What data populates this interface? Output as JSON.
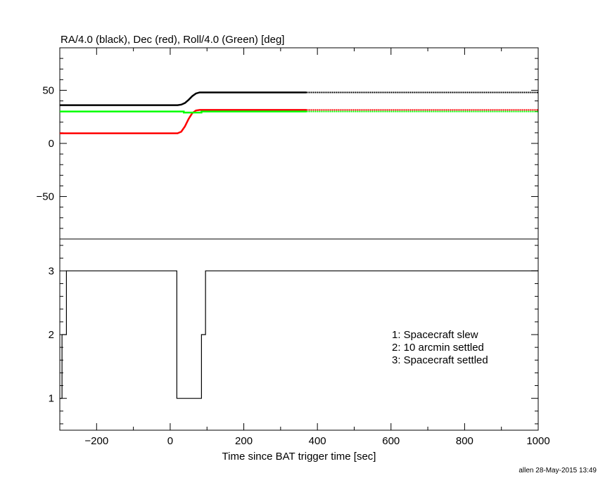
{
  "chart_data": [
    {
      "type": "line",
      "title": "RA/4.0 (black), Dec (red), Roll/4.0 (Green) [deg]",
      "xlim": [
        -300,
        1000
      ],
      "ylim": [
        -90,
        90
      ],
      "yticks": [
        50,
        0,
        -50
      ],
      "ytick_labels": [
        "50",
        "0",
        "−50"
      ],
      "grid": false,
      "series": [
        {
          "color": "#000000",
          "x": [
            -300,
            20,
            30,
            40,
            50,
            60,
            70,
            80,
            370
          ],
          "y": [
            36,
            36,
            36.5,
            38,
            41,
            44.5,
            47,
            48,
            48
          ],
          "continued_dotted_to": 1000
        },
        {
          "color": "#ff0000",
          "x": [
            -300,
            20,
            30,
            40,
            50,
            60,
            70,
            80,
            370
          ],
          "y": [
            9.5,
            9.5,
            11,
            16,
            23,
            28.5,
            31,
            31.5,
            31.5
          ],
          "continued_dotted_to": 1000
        },
        {
          "color": "#00ff00",
          "x": [
            -300,
            37,
            37,
            85,
            85,
            370
          ],
          "y": [
            30,
            30,
            29,
            29,
            30,
            30
          ],
          "continued_dotted_to": 1000
        }
      ]
    },
    {
      "type": "line",
      "step": true,
      "xlabel": "Time since BAT trigger time [sec]",
      "xlim": [
        -300,
        1000
      ],
      "ylim": [
        0.5,
        3.5
      ],
      "xticks": [
        -200,
        0,
        200,
        400,
        600,
        800,
        1000
      ],
      "xtick_labels": [
        "−200",
        "0",
        "200",
        "400",
        "600",
        "800",
        "1000"
      ],
      "yticks": [
        3,
        2,
        1
      ],
      "ytick_labels": [
        "3",
        "2",
        "1"
      ],
      "grid": false,
      "series": [
        {
          "color": "#000000",
          "x": [
            -300,
            -294,
            -282,
            18,
            85,
            96,
            1000
          ],
          "y": [
            1,
            2,
            3,
            1,
            2,
            3,
            3
          ]
        }
      ],
      "annotations": [
        "1: Spacecraft slew",
        "2: 10 arcmin settled",
        "3: Spacecraft settled"
      ]
    }
  ],
  "footer": "allen 28-May-2015 13:49"
}
